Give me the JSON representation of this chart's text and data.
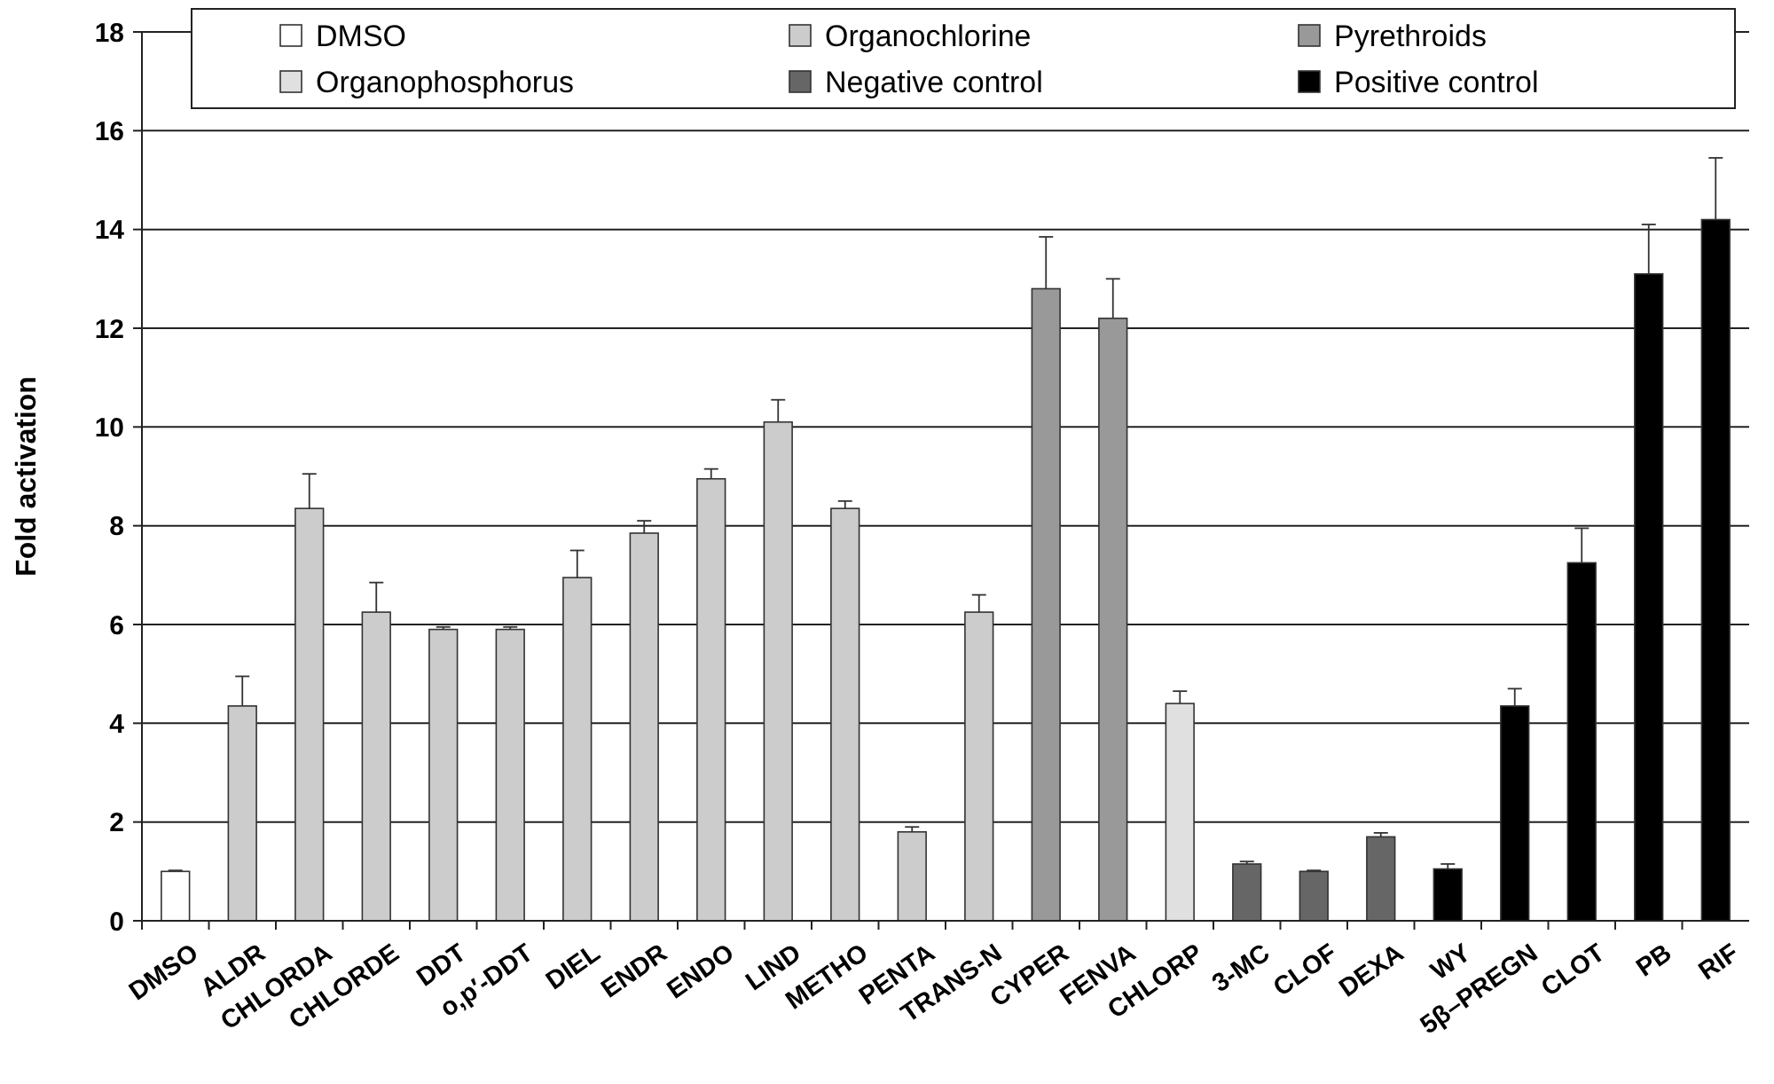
{
  "chart_data": {
    "type": "bar",
    "ylabel": "Fold activation",
    "categories": [
      "DMSO",
      "ALDR",
      "CHLORDA",
      "CHLORDE",
      "DDT",
      "o,p′-DDT",
      "DIEL",
      "ENDR",
      "ENDO",
      "LIND",
      "METHO",
      "PENTA",
      "TRANS-N",
      "CYPER",
      "FENVA",
      "CHLORP",
      "3-MC",
      "CLOF",
      "DEXA",
      "WY",
      "5β–PREGN",
      "CLOT",
      "PB",
      "RIF"
    ],
    "series": [
      {
        "name": "DMSO",
        "color": "#ffffff",
        "values": [
          1.0,
          null,
          null,
          null,
          null,
          null,
          null,
          null,
          null,
          null,
          null,
          null,
          null,
          null,
          null,
          null,
          null,
          null,
          null,
          null,
          null,
          null,
          null,
          null
        ],
        "errors": [
          0.02,
          null,
          null,
          null,
          null,
          null,
          null,
          null,
          null,
          null,
          null,
          null,
          null,
          null,
          null,
          null,
          null,
          null,
          null,
          null,
          null,
          null,
          null,
          null
        ]
      },
      {
        "name": "Organochlorine",
        "color": "#cccccc",
        "values": [
          null,
          4.35,
          8.35,
          6.25,
          5.9,
          5.9,
          6.95,
          7.85,
          8.95,
          10.1,
          8.35,
          1.8,
          6.25,
          null,
          null,
          null,
          null,
          null,
          null,
          null,
          null,
          null,
          null,
          null
        ],
        "errors": [
          null,
          0.6,
          0.7,
          0.6,
          0.05,
          0.05,
          0.55,
          0.25,
          0.2,
          0.45,
          0.15,
          0.1,
          0.35,
          null,
          null,
          null,
          null,
          null,
          null,
          null,
          null,
          null,
          null,
          null
        ]
      },
      {
        "name": "Pyrethroids",
        "color": "#999999",
        "values": [
          null,
          null,
          null,
          null,
          null,
          null,
          null,
          null,
          null,
          null,
          null,
          null,
          null,
          12.8,
          12.2,
          null,
          null,
          null,
          null,
          null,
          null,
          null,
          null,
          null
        ],
        "errors": [
          null,
          null,
          null,
          null,
          null,
          null,
          null,
          null,
          null,
          null,
          null,
          null,
          null,
          1.05,
          0.8,
          null,
          null,
          null,
          null,
          null,
          null,
          null,
          null,
          null
        ]
      },
      {
        "name": "Organophosphorus",
        "color": "#e0e0e0",
        "values": [
          null,
          null,
          null,
          null,
          null,
          null,
          null,
          null,
          null,
          null,
          null,
          null,
          null,
          null,
          null,
          4.4,
          null,
          null,
          null,
          null,
          null,
          null,
          null,
          null
        ],
        "errors": [
          null,
          null,
          null,
          null,
          null,
          null,
          null,
          null,
          null,
          null,
          null,
          null,
          null,
          null,
          null,
          0.25,
          null,
          null,
          null,
          null,
          null,
          null,
          null,
          null
        ]
      },
      {
        "name": "Negative control",
        "color": "#666666",
        "values": [
          null,
          null,
          null,
          null,
          null,
          null,
          null,
          null,
          null,
          null,
          null,
          null,
          null,
          null,
          null,
          null,
          1.15,
          1.0,
          1.7,
          null,
          null,
          null,
          null,
          null
        ],
        "errors": [
          null,
          null,
          null,
          null,
          null,
          null,
          null,
          null,
          null,
          null,
          null,
          null,
          null,
          null,
          null,
          null,
          0.05,
          0.02,
          0.08,
          null,
          null,
          null,
          null,
          null
        ]
      },
      {
        "name": "Positive control",
        "color": "#000000",
        "values": [
          null,
          null,
          null,
          null,
          null,
          null,
          null,
          null,
          null,
          null,
          null,
          null,
          null,
          null,
          null,
          null,
          null,
          null,
          null,
          1.05,
          4.35,
          7.25,
          13.1,
          14.2
        ],
        "errors": [
          null,
          null,
          null,
          null,
          null,
          null,
          null,
          null,
          null,
          null,
          null,
          null,
          null,
          null,
          null,
          null,
          null,
          null,
          null,
          0.1,
          0.35,
          0.7,
          1.0,
          1.25
        ]
      }
    ],
    "ylim": [
      0,
      18
    ],
    "yticks": [
      0,
      2,
      4,
      6,
      8,
      10,
      12,
      14,
      16,
      18
    ],
    "grid": "y",
    "legend": "top"
  }
}
